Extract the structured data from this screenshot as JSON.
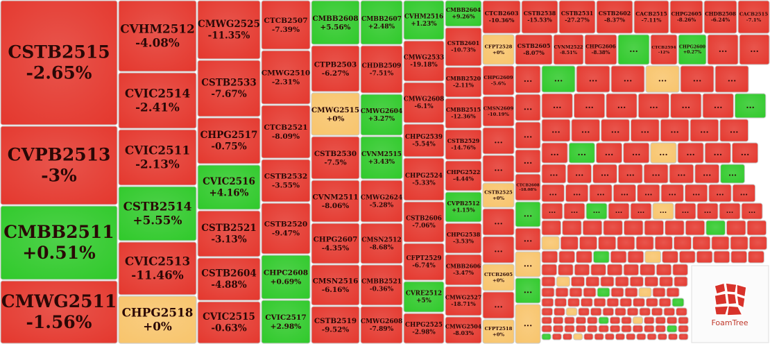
{
  "palette": {
    "red": "#e4372d",
    "green": "#2fc92a",
    "orange": "#f8c46b"
  },
  "ellipsis": "...",
  "logo": "FoamTree",
  "tiles": [
    {
      "name": "CSTB2515",
      "change": "-2.65%",
      "color": "red"
    },
    {
      "name": "CVPB2513",
      "change": "-3%",
      "color": "red"
    },
    {
      "name": "CMBB2511",
      "change": "+0.51%",
      "color": "green"
    },
    {
      "name": "CMWG2511",
      "change": "-1.56%",
      "color": "red"
    },
    {
      "name": "CVHM2512",
      "change": "-4.08%",
      "color": "red"
    },
    {
      "name": "CVIC2514",
      "change": "-2.41%",
      "color": "red"
    },
    {
      "name": "CVIC2511",
      "change": "-2.13%",
      "color": "red"
    },
    {
      "name": "CSTB2514",
      "change": "+5.55%",
      "color": "green"
    },
    {
      "name": "CVIC2513",
      "change": "-11.46%",
      "color": "red"
    },
    {
      "name": "CHPG2518",
      "change": "+0%",
      "color": "orange"
    },
    {
      "name": "CMWG2525",
      "change": "-11.35%",
      "color": "red"
    },
    {
      "name": "CSTB2533",
      "change": "-7.67%",
      "color": "red"
    },
    {
      "name": "CHPG2517",
      "change": "-0.75%",
      "color": "red"
    },
    {
      "name": "CVIC2516",
      "change": "+4.16%",
      "color": "green"
    },
    {
      "name": "CSTB2521",
      "change": "-3.13%",
      "color": "red"
    },
    {
      "name": "CSTB2604",
      "change": "-4.88%",
      "color": "red"
    },
    {
      "name": "CVIC2515",
      "change": "-0.63%",
      "color": "red"
    },
    {
      "name": "CTCB2507",
      "change": "-7.39%",
      "color": "red"
    },
    {
      "name": "CMWG2510",
      "change": "-2.31%",
      "color": "red"
    },
    {
      "name": "CTCB2521",
      "change": "-8.09%",
      "color": "red"
    },
    {
      "name": "CSTB2532",
      "change": "-3.55%",
      "color": "red"
    },
    {
      "name": "CSTB2520",
      "change": "-9.47%",
      "color": "red"
    },
    {
      "name": "CHPC2608",
      "change": "+0.69%",
      "color": "green"
    },
    {
      "name": "CVIC2517",
      "change": "+2.98%",
      "color": "green"
    },
    {
      "name": "CMBB2608",
      "change": "+5.56%",
      "color": "green"
    },
    {
      "name": "CTPB2503",
      "change": "-6.27%",
      "color": "red"
    },
    {
      "name": "CMWG2515",
      "change": "+0%",
      "color": "orange"
    },
    {
      "name": "CSTB2530",
      "change": "-7.5%",
      "color": "red"
    },
    {
      "name": "CVNM2511",
      "change": "-8.06%",
      "color": "red"
    },
    {
      "name": "CHPG2607",
      "change": "-4.35%",
      "color": "red"
    },
    {
      "name": "CMSN2516",
      "change": "-6.16%",
      "color": "red"
    },
    {
      "name": "CSTB2519",
      "change": "-9.52%",
      "color": "red"
    },
    {
      "name": "CMBB2607",
      "change": "+2.48%",
      "color": "green"
    },
    {
      "name": "CHDB2509",
      "change": "-7.51%",
      "color": "red"
    },
    {
      "name": "CMWG2604",
      "change": "+3.27%",
      "color": "green"
    },
    {
      "name": "CVNM2515",
      "change": "+3.43%",
      "color": "green"
    },
    {
      "name": "CMWG2624",
      "change": "-5.28%",
      "color": "red"
    },
    {
      "name": "CMSN2512",
      "change": "-8.68%",
      "color": "red"
    },
    {
      "name": "CMBB2521",
      "change": "-0.36%",
      "color": "red"
    },
    {
      "name": "CMWG2608",
      "change": "-7.89%",
      "color": "red"
    },
    {
      "name": "CVHM2516",
      "change": "+1.23%",
      "color": "green"
    },
    {
      "name": "CMWG2533",
      "change": "-19.18%",
      "color": "red"
    },
    {
      "name": "CMWG2608",
      "change": "-6.1%",
      "color": "red"
    },
    {
      "name": "CHPG2539",
      "change": "-5.54%",
      "color": "red"
    },
    {
      "name": "CHPG2524",
      "change": "-5.33%",
      "color": "red"
    },
    {
      "name": "CSTB2606",
      "change": "-7.06%",
      "color": "red"
    },
    {
      "name": "CFPT2529",
      "change": "-6.74%",
      "color": "red"
    },
    {
      "name": "CVRE2512",
      "change": "+5%",
      "color": "green"
    },
    {
      "name": "CHPG2525",
      "change": "-2.98%",
      "color": "red"
    },
    {
      "name": "CMBB2604",
      "change": "+9.26%",
      "color": "green"
    },
    {
      "name": "CSTB2601",
      "change": "-10.73%",
      "color": "red"
    },
    {
      "name": "CMBB2520",
      "change": "-2.11%",
      "color": "red"
    },
    {
      "name": "CMBB2515",
      "change": "-12.36%",
      "color": "red"
    },
    {
      "name": "CSTB2529",
      "change": "-14.76%",
      "color": "red"
    },
    {
      "name": "CHPG2522",
      "change": "-4.44%",
      "color": "red"
    },
    {
      "name": "CVPB2512",
      "change": "+1.15%",
      "color": "green"
    },
    {
      "name": "CHPG2538",
      "change": "-3.53%",
      "color": "red"
    },
    {
      "name": "CMBB2606",
      "change": "-3.47%",
      "color": "red"
    },
    {
      "name": "CMWG2527",
      "change": "-18.71%",
      "color": "red"
    },
    {
      "name": "CMWG2504",
      "change": "-8.03%",
      "color": "red"
    },
    {
      "name": "CTCB2603",
      "change": "-10.36%",
      "color": "red"
    },
    {
      "name": "CSTB2538",
      "change": "-15.53%",
      "color": "red"
    },
    {
      "name": "CSTB2531",
      "change": "-27.27%",
      "color": "red"
    },
    {
      "name": "CSTB2602",
      "change": "-8.37%",
      "color": "red"
    },
    {
      "name": "CACB2515",
      "change": "-7.11%",
      "color": "red"
    },
    {
      "name": "CHPG2605",
      "change": "-8.26%",
      "color": "red"
    },
    {
      "name": "CHDB2508",
      "change": "-6.24%",
      "color": "red"
    },
    {
      "name": "CACB2515",
      "change": "-7.1%",
      "color": "red"
    },
    {
      "name": "CSTB2605",
      "change": "-8.07%",
      "color": "red"
    },
    {
      "name": "CVNM2522",
      "change": "-8.51%",
      "color": "red"
    },
    {
      "name": "CHPG2606",
      "change": "-8.38%",
      "color": "red"
    },
    {
      "name": "...",
      "color": "green"
    },
    {
      "name": "CTCB2594",
      "change": "-12%",
      "color": "red"
    },
    {
      "name": "CHPG2600",
      "change": "+0.27%",
      "color": "green"
    },
    {
      "name": "...",
      "color": "red"
    },
    {
      "name": "...",
      "color": "red"
    },
    {
      "name": "CFPT2528",
      "change": "+0%",
      "color": "orange"
    },
    {
      "name": "CHPG2609",
      "change": "-5.6%",
      "color": "red"
    },
    {
      "name": "CMSN2609",
      "change": "-10.19%",
      "color": "red"
    },
    {
      "name": "...",
      "color": "red"
    },
    {
      "name": "...",
      "color": "red"
    },
    {
      "name": "CSTB2525",
      "change": "+0%",
      "color": "orange"
    },
    {
      "name": "...",
      "color": "red"
    },
    {
      "name": "...",
      "color": "red"
    },
    {
      "name": "CTCB2605",
      "change": "+0%",
      "color": "orange"
    },
    {
      "name": "...",
      "color": "red"
    },
    {
      "name": "CFPT2518",
      "change": "+0%",
      "color": "orange"
    },
    {
      "name": "...",
      "color": "red"
    },
    {
      "name": "...",
      "color": "red"
    },
    {
      "name": "...",
      "color": "red"
    },
    {
      "name": "...",
      "color": "red"
    },
    {
      "name": "CTCB2608",
      "change": "-18.08%",
      "color": "red"
    },
    {
      "name": "...",
      "color": "green"
    },
    {
      "name": "...",
      "color": "red"
    },
    {
      "name": "...",
      "color": "orange"
    },
    {
      "name": "...",
      "color": "green"
    },
    {
      "name": "...",
      "color": "orange"
    }
  ]
}
